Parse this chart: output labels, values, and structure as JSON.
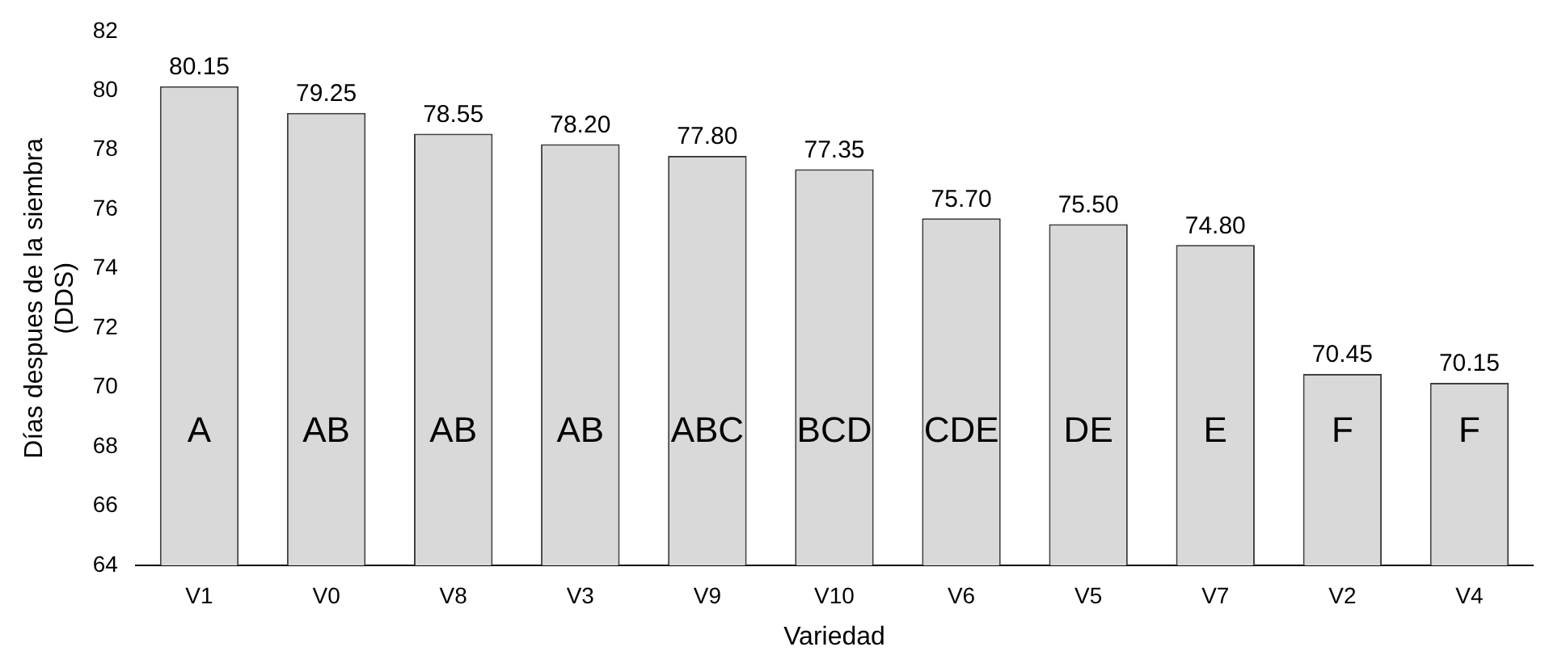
{
  "chart_data": {
    "type": "bar",
    "xlabel": "Variedad",
    "ylabel": "Días despues de la siembra (DDS)",
    "categories": [
      "V1",
      "V0",
      "V8",
      "V3",
      "V9",
      "V10",
      "V6",
      "V5",
      "V7",
      "V2",
      "V4"
    ],
    "values": [
      80.15,
      79.25,
      78.55,
      78.2,
      77.8,
      77.35,
      75.7,
      75.5,
      74.8,
      70.45,
      70.15
    ],
    "value_labels": [
      "80.15",
      "79.25",
      "78.55",
      "78.20",
      "77.80",
      "77.35",
      "75.70",
      "75.50",
      "74.80",
      "70.45",
      "70.15"
    ],
    "color": "#d9d9d9",
    "ylim": [
      64,
      82
    ],
    "yticks": [
      64,
      66,
      68,
      70,
      72,
      74,
      76,
      78,
      80,
      82
    ],
    "grid": false,
    "legend": false,
    "annotations": [
      "A",
      "AB",
      "AB",
      "AB",
      "ABC",
      "BCD",
      "CDE",
      "DE",
      "E",
      "F",
      "F"
    ]
  }
}
